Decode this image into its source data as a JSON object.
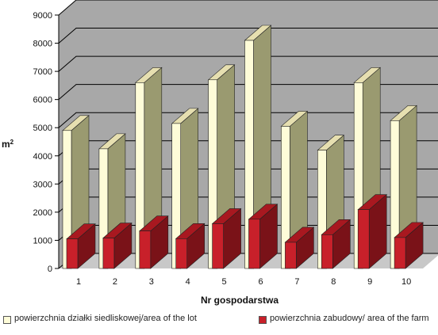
{
  "chart_data": {
    "type": "bar",
    "variant": "3d-clustered",
    "categories": [
      "1",
      "2",
      "3",
      "4",
      "5",
      "6",
      "7",
      "8",
      "9",
      "10"
    ],
    "series": [
      {
        "name": "powierzchnia działki siedliskowej/area of the lot",
        "values": [
          4900,
          4250,
          6600,
          5150,
          6700,
          8100,
          5050,
          4200,
          6600,
          5250
        ],
        "color": "#fefcd8"
      },
      {
        "name": "powierzchnia zabudowy/ area of the farm",
        "values": [
          1050,
          1080,
          1330,
          1060,
          1590,
          1750,
          930,
          1200,
          2090,
          1100
        ],
        "color": "#c8202a"
      }
    ],
    "xlabel": "Nr gospodarstwa",
    "ylabel": "m2",
    "ylim": [
      0,
      9000
    ],
    "yticks": [
      "0",
      "1000",
      "2000",
      "3000",
      "4000",
      "5000",
      "6000",
      "7000",
      "8000",
      "9000"
    ],
    "grid": true,
    "legend_position": "bottom"
  },
  "legend": {
    "item1": "powierzchnia działki siedliskowej/area of the lot",
    "item2": "powierzchnia zabudowy/ area of the farm"
  },
  "colors": {
    "wall": "#a8a8a8",
    "floor": "#c8c8c8",
    "lot_front": "#fefcd8",
    "lot_side": "#9a9a70",
    "lot_top": "#e6dfb0",
    "farm_front": "#c8202a",
    "farm_side": "#7a1218",
    "farm_top": "#a81820"
  }
}
